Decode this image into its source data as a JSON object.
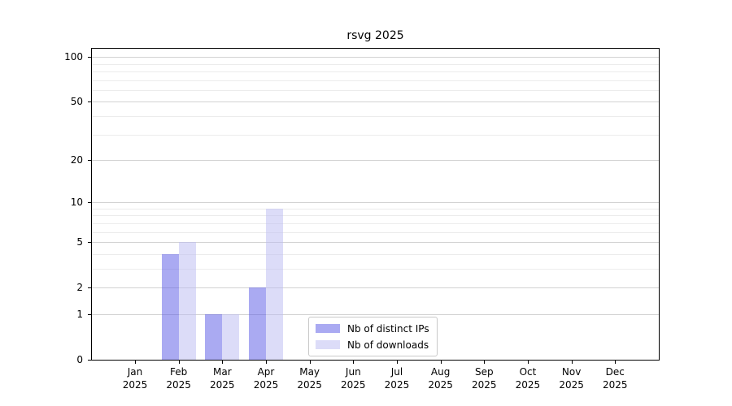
{
  "chart_data": {
    "type": "bar",
    "title": "rsvg 2025",
    "categories": [
      "Jan",
      "Feb",
      "Mar",
      "Apr",
      "May",
      "Jun",
      "Jul",
      "Aug",
      "Sep",
      "Oct",
      "Nov",
      "Dec"
    ],
    "year": "2025",
    "x_tick_labels": [
      "Jan 2025",
      "Feb 2025",
      "Mar 2025",
      "Apr 2025",
      "May 2025",
      "Jun 2025",
      "Jul 2025",
      "Aug 2025",
      "Sep 2025",
      "Oct 2025",
      "Nov 2025",
      "Dec 2025"
    ],
    "series": [
      {
        "name": "Nb of distinct IPs",
        "color": "rgba(85,85,229,0.5)",
        "values": [
          0,
          4,
          1,
          2,
          0,
          0,
          0,
          0,
          0,
          0,
          0,
          0
        ]
      },
      {
        "name": "Nb of downloads",
        "color": "rgba(185,185,241,0.5)",
        "values": [
          0,
          5,
          1,
          9,
          0,
          0,
          0,
          0,
          0,
          0,
          0,
          0
        ]
      }
    ],
    "xlabel": "",
    "ylabel": "",
    "y_axis": {
      "scale": "log(1+x)",
      "ticks": [
        0,
        1,
        2,
        5,
        10,
        20,
        50,
        100
      ],
      "minor_gridlines": [
        3,
        4,
        6,
        7,
        8,
        9,
        30,
        40,
        60,
        70,
        80,
        90
      ],
      "range": [
        0,
        113.5
      ]
    },
    "legend": {
      "entries": [
        "Nb of distinct IPs",
        "Nb of downloads"
      ],
      "position": "inside-bottom-center"
    },
    "grid": {
      "axis": "y",
      "major_color": "#d2d2d2",
      "minor_color": "#ececec"
    }
  }
}
